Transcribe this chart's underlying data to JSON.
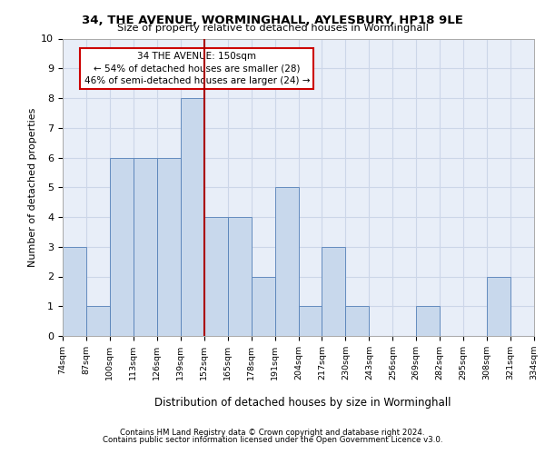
{
  "title1": "34, THE AVENUE, WORMINGHALL, AYLESBURY, HP18 9LE",
  "title2": "Size of property relative to detached houses in Worminghall",
  "xlabel": "Distribution of detached houses by size in Worminghall",
  "ylabel": "Number of detached properties",
  "footer1": "Contains HM Land Registry data © Crown copyright and database right 2024.",
  "footer2": "Contains public sector information licensed under the Open Government Licence v3.0.",
  "annotation_line1": "34 THE AVENUE: 150sqm",
  "annotation_line2": "← 54% of detached houses are smaller (28)",
  "annotation_line3": "46% of semi-detached houses are larger (24) →",
  "bins": [
    74,
    87,
    100,
    113,
    126,
    139,
    152,
    165,
    178,
    191,
    204,
    217,
    230,
    243,
    256,
    269,
    282,
    295,
    308,
    321,
    334
  ],
  "counts": [
    3,
    1,
    6,
    6,
    6,
    8,
    4,
    4,
    2,
    5,
    1,
    3,
    1,
    0,
    0,
    1,
    0,
    0,
    2,
    0
  ],
  "bar_color": "#c8d8ec",
  "bar_edge_color": "#5580b8",
  "subject_line_color": "#aa0000",
  "grid_color": "#ccd6e8",
  "bg_color": "#e8eef8",
  "ylim": [
    0,
    10
  ],
  "yticks": [
    0,
    1,
    2,
    3,
    4,
    5,
    6,
    7,
    8,
    9,
    10
  ]
}
